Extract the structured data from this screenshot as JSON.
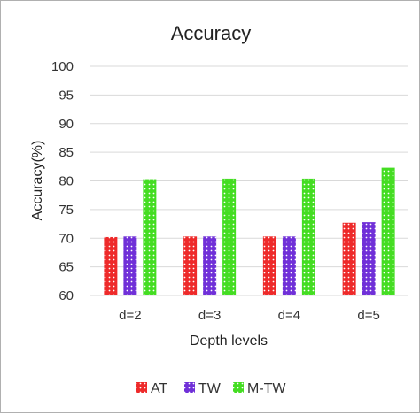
{
  "chart_data": {
    "type": "bar",
    "title": "Accuracy",
    "xlabel": "Depth levels",
    "ylabel": "Accuracy(%)",
    "categories": [
      "d=2",
      "d=3",
      "d=4",
      "d=5"
    ],
    "ylim": [
      60,
      100
    ],
    "yticks": [
      60,
      65,
      70,
      75,
      80,
      85,
      90,
      95,
      100
    ],
    "grid": true,
    "legend_position": "bottom",
    "series": [
      {
        "name": "AT",
        "color": "#ee2a2a",
        "values": [
          70.2,
          70.3,
          70.3,
          72.7
        ]
      },
      {
        "name": "TW",
        "color": "#7030d8",
        "values": [
          70.3,
          70.3,
          70.3,
          72.8
        ]
      },
      {
        "name": "M-TW",
        "color": "#44dd22",
        "values": [
          80.3,
          80.4,
          80.4,
          82.3
        ]
      }
    ]
  }
}
